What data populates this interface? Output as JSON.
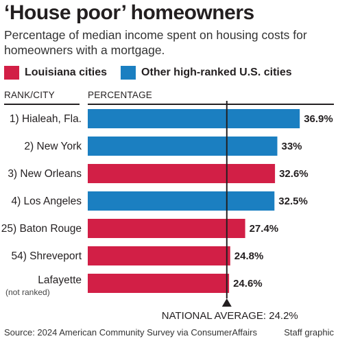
{
  "header": {
    "title": "‘House poor’ homeowners",
    "subtitle": "Percentage of median income spent on housing costs for homeowners with a mortgage."
  },
  "legend": [
    {
      "label": "Louisiana cities",
      "color": "#d21f46"
    },
    {
      "label": "Other high-ranked U.S. cities",
      "color": "#1b7fc1"
    }
  ],
  "columns": {
    "rank_city": "RANK/CITY",
    "percentage": "PERCENTAGE"
  },
  "chart_data": {
    "type": "bar",
    "orientation": "horizontal",
    "categories": [
      "1) Hialeah, Fla.",
      "2) New York",
      "3) New Orleans",
      "4) Los Angeles",
      "25) Baton Rouge",
      "54) Shreveport",
      "Lafayette"
    ],
    "category_notes": [
      "",
      "",
      "",
      "",
      "",
      "",
      "(not ranked)"
    ],
    "values": [
      36.9,
      33,
      32.6,
      32.5,
      27.4,
      24.8,
      24.6
    ],
    "value_labels": [
      "36.9%",
      "33%",
      "32.6%",
      "32.5%",
      "27.4%",
      "24.8%",
      "24.6%"
    ],
    "groups": [
      "Other high-ranked U.S. cities",
      "Other high-ranked U.S. cities",
      "Louisiana cities",
      "Other high-ranked U.S. cities",
      "Louisiana cities",
      "Louisiana cities",
      "Louisiana cities"
    ],
    "reference_line": {
      "value": 24.2,
      "label": "NATIONAL AVERAGE: 24.2%"
    },
    "xlim": [
      0,
      37
    ],
    "title": "‘House poor’ homeowners",
    "xlabel": "PERCENTAGE",
    "ylabel": "RANK/CITY",
    "grid": false,
    "legend_position": "top"
  },
  "footer": {
    "source": "Source: 2024 American Community Survey via ConsumerAffairs",
    "credit": "Staff graphic"
  }
}
